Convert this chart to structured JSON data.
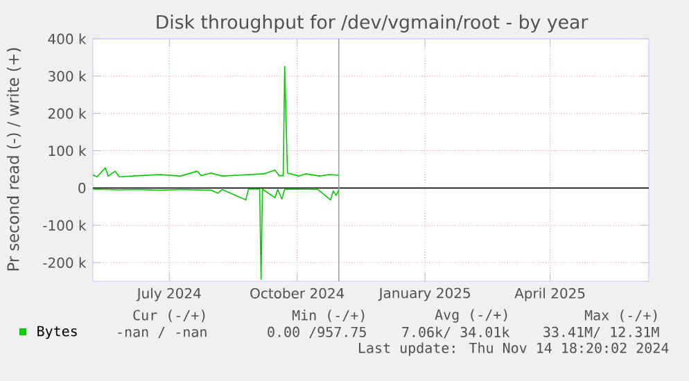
{
  "chart_data": {
    "type": "line",
    "title": "Disk throughput for /dev/vgmain/root - by year",
    "ylabel": "Pr second read (-) / write (+)",
    "xlim": [
      "2024-05-21",
      "2025-06-25"
    ],
    "xticks": [
      {
        "value": "2024-07-15",
        "label": "July 2024"
      },
      {
        "value": "2024-10-15",
        "label": "October 2024"
      },
      {
        "value": "2025-01-15",
        "label": "January 2025"
      },
      {
        "value": "2025-04-15",
        "label": "April 2025"
      }
    ],
    "ylim": [
      -250000,
      400000
    ],
    "yticks": [
      {
        "value": -200000,
        "label": "-200 k"
      },
      {
        "value": -100000,
        "label": "-100 k"
      },
      0,
      {
        "value": 100000,
        "label": "100 k"
      },
      {
        "value": 200000,
        "label": "200 k"
      },
      {
        "value": 300000,
        "label": "300 k"
      },
      {
        "value": 400000,
        "label": "400 k"
      }
    ],
    "grid": true,
    "legend": "bottom",
    "series": [
      {
        "name": "Bytes",
        "color": "#00cc00",
        "x": [
          "2024-05-21",
          "2024-05-24",
          "2024-05-30",
          "2024-06-01",
          "2024-06-06",
          "2024-06-09",
          "2024-06-23",
          "2024-07-08",
          "2024-07-23",
          "2024-08-04",
          "2024-08-07",
          "2024-08-14",
          "2024-08-22",
          "2024-09-06",
          "2024-09-21",
          "2024-09-29",
          "2024-10-02",
          "2024-10-05",
          "2024-10-06",
          "2024-10-08",
          "2024-10-16",
          "2024-10-21",
          "2024-10-31",
          "2024-11-07",
          "2024-11-14"
        ],
        "values": [
          35000,
          30000,
          54000,
          32000,
          45000,
          30000,
          33000,
          36000,
          32000,
          45000,
          33000,
          40000,
          32000,
          35000,
          38000,
          48000,
          33000,
          33000,
          326000,
          40000,
          32000,
          38000,
          32000,
          36000,
          34000
        ]
      },
      {
        "color": "#00cc00",
        "x": [
          "2024-05-21",
          "2024-06-09",
          "2024-06-23",
          "2024-07-08",
          "2024-07-23",
          "2024-08-14",
          "2024-08-19",
          "2024-08-22",
          "2024-09-08",
          "2024-09-10",
          "2024-09-18",
          "2024-09-19",
          "2024-09-20",
          "2024-09-29",
          "2024-10-01",
          "2024-10-04",
          "2024-10-06",
          "2024-10-30",
          "2024-11-08",
          "2024-11-10",
          "2024-11-12",
          "2024-11-14"
        ],
        "values": [
          -3000,
          -5000,
          -4000,
          -6000,
          -4000,
          -6000,
          -14000,
          -4000,
          -32000,
          -3000,
          -3000,
          -245000,
          -3000,
          -26000,
          -4000,
          -30000,
          -3000,
          -4000,
          -32000,
          -8000,
          -20000,
          -5000
        ]
      }
    ],
    "ref_lines": [
      {
        "axis": "y",
        "value": 0,
        "color": "#000000"
      },
      {
        "axis": "x",
        "value": "2024-11-14",
        "color": "#999999"
      }
    ],
    "annotations": [
      "Cur (-/+)",
      "Min (-/+)",
      "Avg (-/+)",
      "Max (-/+)",
      "-nan / -nan",
      "0.00 /957.75",
      "7.06k/ 34.01k",
      "33.41M/ 12.31M",
      "Last update: Thu Nov 14 18:20:02 2024"
    ]
  }
}
